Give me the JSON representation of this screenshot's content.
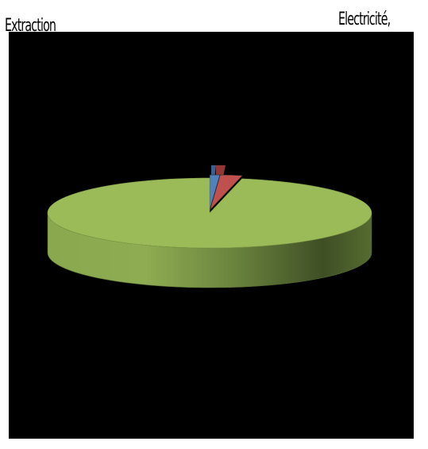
{
  "labels": {
    "left": "Extraction",
    "right": "Electricité,"
  },
  "chart_data": {
    "type": "pie",
    "style": "3d",
    "slices": [
      {
        "category": "Extraction",
        "value": 1.0,
        "color": "#4f81bd"
      },
      {
        "category": "Electricité",
        "value": 2.2,
        "color": "#c0504d"
      },
      {
        "category": "",
        "value": 96.8,
        "color": "#9bbb59"
      }
    ],
    "background": "#000000",
    "legend": "none"
  }
}
